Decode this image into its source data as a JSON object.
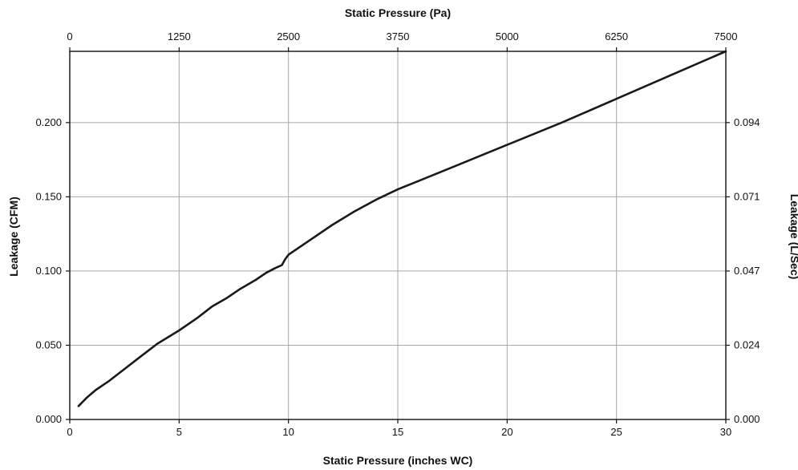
{
  "chart_data": {
    "type": "line",
    "title": "",
    "xlabel": "Static Pressure (inches WC)",
    "ylabel": "Leakage (CFM)",
    "x_top_label": "Static Pressure (Pa)",
    "y_right_label": "Leakage (L/Sec)",
    "xlim": [
      0,
      30
    ],
    "ylim": [
      0,
      0.248
    ],
    "x_top_lim": [
      0,
      7500
    ],
    "x_ticks": [
      "0",
      "5",
      "10",
      "15",
      "20",
      "25",
      "30"
    ],
    "x_top_ticks": [
      "0",
      "1250",
      "2500",
      "3750",
      "5000",
      "6250",
      "7500"
    ],
    "y_ticks": [
      "0.000",
      "0.050",
      "0.100",
      "0.150",
      "0.200"
    ],
    "y_right_ticks": [
      "0.000",
      "0.024",
      "0.047",
      "0.071",
      "0.094"
    ],
    "grid": true,
    "line_color": "#1a1a1a",
    "grid_color": "#a8a8a8",
    "series": [
      {
        "x": [
          0.4,
          0.8,
          1.2,
          1.8,
          2.5,
          3.2,
          4,
          5,
          5.8,
          6.5,
          7.2,
          7.8,
          8.5,
          9,
          9.4,
          9.7,
          9.85,
          10,
          10.5,
          11,
          12,
          13,
          14,
          15,
          17.5,
          20,
          22.5,
          25,
          27.5,
          30
        ],
        "y": [
          0.009,
          0.015,
          0.02,
          0.026,
          0.034,
          0.042,
          0.051,
          0.06,
          0.068,
          0.076,
          0.082,
          0.088,
          0.094,
          0.099,
          0.102,
          0.104,
          0.108,
          0.111,
          0.116,
          0.121,
          0.131,
          0.14,
          0.148,
          0.155,
          0.17,
          0.185,
          0.2,
          0.216,
          0.232,
          0.248
        ]
      }
    ]
  }
}
